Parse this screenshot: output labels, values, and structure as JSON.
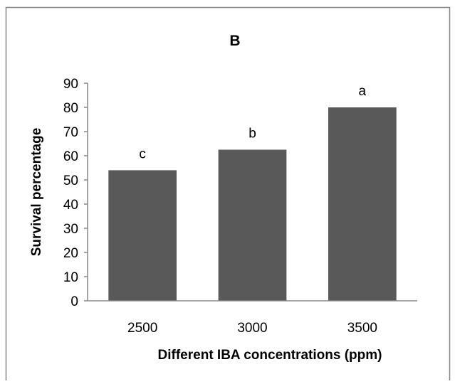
{
  "chart_data": {
    "type": "bar",
    "title": "B",
    "xlabel": "Different IBA concentrations  (ppm)",
    "ylabel": "Survival percentage",
    "categories": [
      "2500",
      "3000",
      "3500"
    ],
    "values": [
      54,
      62.5,
      80
    ],
    "data_labels": [
      "c",
      "b",
      "a"
    ],
    "ylim": [
      0,
      90
    ],
    "yticks": [
      "0",
      "10",
      "20",
      "30",
      "40",
      "50",
      "60",
      "70",
      "80",
      "90"
    ],
    "grid": false,
    "legend": "none",
    "bar_color": "#595959",
    "axis_color": "#868686",
    "frame_color": "#868686"
  }
}
